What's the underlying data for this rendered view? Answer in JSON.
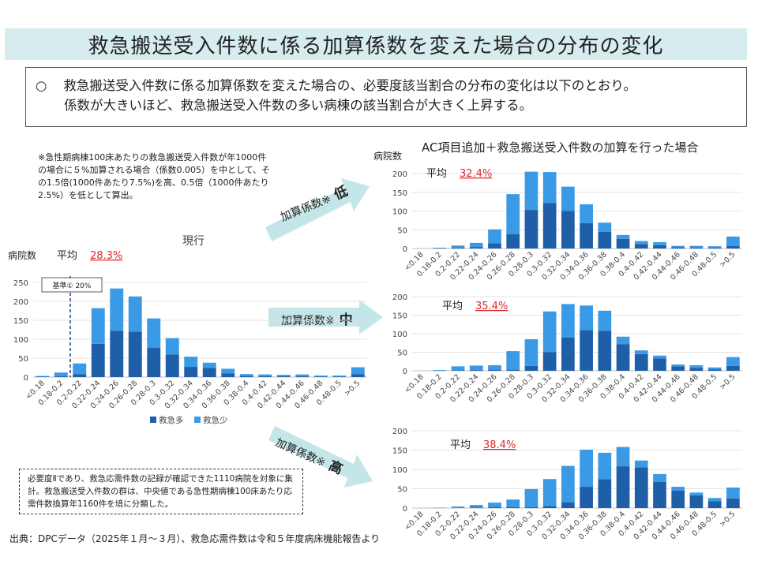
{
  "title": "救急搬送受入件数に係る加算係数を変えた場合の分布の変化",
  "summary": {
    "bullet": "○",
    "line1": "救急搬送受入件数に係る加算係数を変えた場合の、必要度該当割合の分布の変化は以下のとおり。",
    "line2": "係数が大きいほど、救急搬送受入件数の多い病棟の該当割合が大きく上昇する。"
  },
  "note_top": "※急性期病棟100床あたりの救急搬送受入件数が年1000件の場合に５%加算される場合（係数0.005）を中として、その1.5倍(1000件あたり7.5%)を高、0.5倍（1000件あたり2.5%）を低として算出。",
  "note_bottom": "必要度Ⅱであり、救急応需件数の記録が確認できた1110病院を対象に集計。救急搬送受入件数の群は、中央値である急性期病棟100床あたり応需件数換算年1160件を境に分類した。",
  "source": "出典：DPCデータ（2025年１月～３月）、救急応需件数は令和５年度病床機能報告より",
  "right_header": "AC項目追加＋救急搬送受入件数の加算を行った場合",
  "arrows": [
    {
      "label": "加算係数※",
      "level": "低"
    },
    {
      "label": "加算係数※",
      "level": "中"
    },
    {
      "label": "加算係数※",
      "level": "高"
    }
  ],
  "colors": {
    "dark": "#1f5fa8",
    "light": "#3b9ae6",
    "title_bg": "#d6ecef",
    "arrow": "#c5e6e8",
    "avg": "#e0282a"
  },
  "chart_data": [
    {
      "id": "current",
      "type": "bar",
      "stacked": true,
      "title": "現行",
      "ylabel": "病院数",
      "ylim": [
        0,
        250
      ],
      "yticks": [
        0,
        50,
        100,
        150,
        200,
        250
      ],
      "avg_label": "平均",
      "avg_value": "28.3%",
      "baseline_label": "基準① 20%",
      "baseline_at": "0.2",
      "legend": [
        "救急多",
        "救急少"
      ],
      "categories": [
        "<0.18",
        "0.18-0.2",
        "0.2-0.22",
        "0.22-0.24",
        "0.24-0.26",
        "0.26-0.28",
        "0.28-0.3",
        "0.3-0.32",
        "0.32-0.34",
        "0.34-0.36",
        "0.36-0.38",
        "0.38-0.4",
        "0.4-0.42",
        "0.42-0.44",
        "0.44-0.46",
        "0.46-0.48",
        "0.48-0.5",
        ">0.5"
      ],
      "series": [
        {
          "name": "救急多",
          "values": [
            1,
            2,
            8,
            88,
            122,
            120,
            77,
            60,
            27,
            24,
            10,
            3,
            2,
            2,
            2,
            1,
            1,
            8
          ]
        },
        {
          "name": "救急少",
          "values": [
            2,
            10,
            28,
            94,
            112,
            93,
            78,
            43,
            27,
            14,
            12,
            5,
            5,
            4,
            5,
            3,
            3,
            18
          ]
        }
      ]
    },
    {
      "id": "low",
      "type": "bar",
      "stacked": true,
      "title": "AC項目追加＋救急搬送受入件数の加算を行った場合",
      "ylabel": "病院数",
      "ylim": [
        0,
        200
      ],
      "yticks": [
        0,
        50,
        100,
        150,
        200
      ],
      "avg_label": "平均",
      "avg_value": "32.4%",
      "categories": [
        "<0.18",
        "0.18-0.2",
        "0.2-0.22",
        "0.22-0.24",
        "0.24-0.26",
        "0.26-0.28",
        "0.28-0.3",
        "0.3-0.32",
        "0.32-0.34",
        "0.34-0.36",
        "0.36-0.38",
        "0.38-0.4",
        "0.4-0.42",
        "0.42-0.44",
        "0.44-0.46",
        "0.46-0.48",
        "0.48-0.5",
        ">0.5"
      ],
      "series": [
        {
          "name": "救急多",
          "values": [
            0,
            1,
            2,
            4,
            14,
            38,
            103,
            121,
            100,
            68,
            45,
            26,
            12,
            9,
            3,
            2,
            2,
            7
          ]
        },
        {
          "name": "救急少",
          "values": [
            0,
            1,
            6,
            11,
            37,
            107,
            102,
            83,
            65,
            50,
            24,
            10,
            8,
            8,
            4,
            5,
            4,
            25
          ]
        }
      ]
    },
    {
      "id": "mid",
      "type": "bar",
      "stacked": true,
      "ylabel": "",
      "ylim": [
        0,
        200
      ],
      "yticks": [
        0,
        50,
        100,
        150,
        200
      ],
      "avg_label": "平均",
      "avg_value": "35.4%",
      "categories": [
        "<0.18",
        "0.18-0.2",
        "0.2-0.22",
        "0.22-0.24",
        "0.24-0.26",
        "0.26-0.28",
        "0.28-0.3",
        "0.3-0.32",
        "0.32-0.34",
        "0.34-0.36",
        "0.36-0.38",
        "0.38-0.4",
        "0.4-0.42",
        "0.42-0.44",
        "0.44-0.46",
        "0.46-0.48",
        "0.48-0.5",
        ">0.5"
      ],
      "series": [
        {
          "name": "救急多",
          "values": [
            0,
            0,
            1,
            2,
            3,
            3,
            13,
            50,
            90,
            110,
            108,
            72,
            45,
            33,
            12,
            8,
            4,
            13
          ]
        },
        {
          "name": "救急少",
          "values": [
            0,
            2,
            11,
            12,
            12,
            50,
            72,
            110,
            90,
            66,
            54,
            20,
            10,
            8,
            5,
            7,
            5,
            24
          ]
        }
      ]
    },
    {
      "id": "high",
      "type": "bar",
      "stacked": true,
      "ylabel": "",
      "ylim": [
        0,
        200
      ],
      "yticks": [
        0,
        50,
        100,
        150,
        200
      ],
      "avg_label": "平均",
      "avg_value": "38.4%",
      "categories": [
        "<0.18",
        "0.18-0.2",
        "0.2-0.22",
        "0.22-0.24",
        "0.24-0.26",
        "0.26-0.28",
        "0.28-0.3",
        "0.3-0.32",
        "0.32-0.34",
        "0.34-0.36",
        "0.36-0.38",
        "0.38-0.4",
        "0.4-0.42",
        "0.42-0.44",
        "0.44-0.46",
        "0.46-0.48",
        "0.48-0.5",
        ">0.5"
      ],
      "series": [
        {
          "name": "救急多",
          "values": [
            0,
            0,
            0,
            1,
            2,
            2,
            2,
            5,
            15,
            55,
            75,
            108,
            105,
            68,
            45,
            33,
            18,
            25
          ]
        },
        {
          "name": "救急少",
          "values": [
            0,
            1,
            4,
            7,
            12,
            20,
            47,
            70,
            94,
            96,
            68,
            50,
            18,
            20,
            10,
            7,
            8,
            28
          ]
        }
      ]
    }
  ]
}
